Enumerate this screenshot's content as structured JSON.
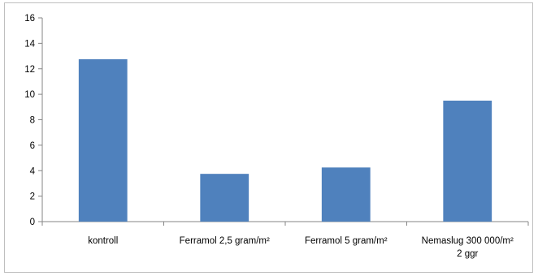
{
  "chart_data": {
    "type": "bar",
    "title": "",
    "xlabel": "",
    "ylabel": "",
    "categories": [
      [
        "kontroll"
      ],
      [
        "Ferramol 2,5 gram/m²"
      ],
      [
        "Ferramol 5 gram/m²"
      ],
      [
        "Nemaslug 300 000/m²",
        "2 ggr"
      ]
    ],
    "values": [
      12.75,
      3.75,
      4.25,
      9.5
    ],
    "ylim": [
      0,
      16
    ],
    "yticks": [
      "0",
      "2",
      "4",
      "6",
      "8",
      "10",
      "12",
      "14",
      "16"
    ],
    "grid": false,
    "legend": "none",
    "bar_color": "#4f81bd",
    "axis_color": "#868686"
  }
}
